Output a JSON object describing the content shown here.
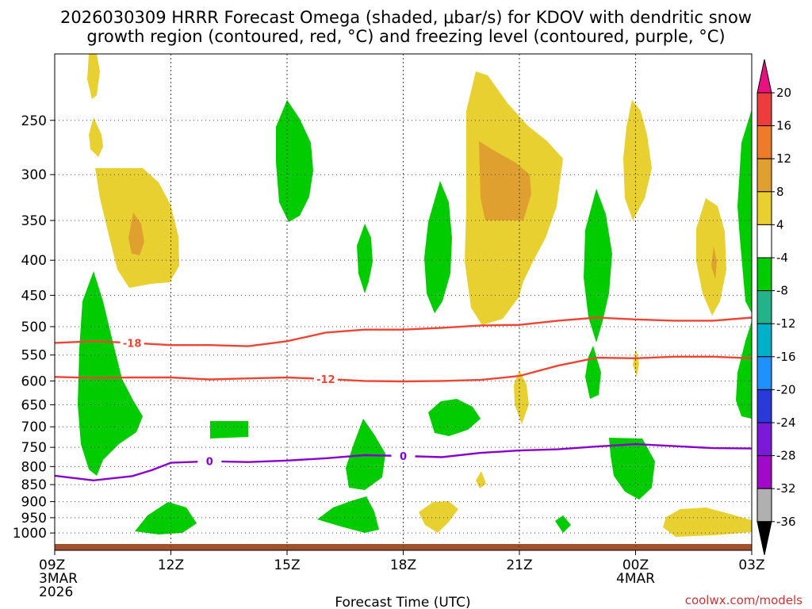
{
  "chart_data": {
    "type": "time-height contour",
    "title_line1": "2026030309 HRRR Forecast Omega (shaded, μbar/s) for KDOV with dendritic snow",
    "title_line2": "growth region (contoured, red, °C) and freezing level (contoured, purple, °C)",
    "xlabel": "Forecast Time (UTC)",
    "credit": "coolwx.com/models",
    "x_range_hours": [
      0,
      18
    ],
    "x_ticks": [
      {
        "h": 0,
        "label": "09Z",
        "sub1": "3MAR",
        "sub2": "2026"
      },
      {
        "h": 3,
        "label": "12Z",
        "sub1": "",
        "sub2": ""
      },
      {
        "h": 6,
        "label": "15Z",
        "sub1": "",
        "sub2": ""
      },
      {
        "h": 9,
        "label": "18Z",
        "sub1": "",
        "sub2": ""
      },
      {
        "h": 12,
        "label": "21Z",
        "sub1": "",
        "sub2": ""
      },
      {
        "h": 15,
        "label": "00Z",
        "sub1": "4MAR",
        "sub2": ""
      },
      {
        "h": 18,
        "label": "03Z",
        "sub1": "",
        "sub2": ""
      }
    ],
    "y_ticks_hpa": [
      250,
      300,
      350,
      400,
      450,
      500,
      550,
      600,
      650,
      700,
      750,
      800,
      850,
      900,
      950,
      1000
    ],
    "y_labels": [
      "250",
      "300",
      "350",
      "400",
      "450",
      "500",
      "550",
      "600",
      "650",
      "700",
      "750",
      "800",
      "850",
      "900",
      "950",
      "1000"
    ],
    "colorbar_labels": [
      "20",
      "16",
      "12",
      "8",
      "4",
      "-4",
      "-8",
      "-12",
      "-16",
      "-20",
      "-24",
      "-28",
      "-32",
      "-36"
    ],
    "colorbar_colors": [
      "#e8117f",
      "#ee3b3b",
      "#ee7a2a",
      "#e0a030",
      "#e8d030",
      "#ffffff",
      "#00cc00",
      "#22b38a",
      "#00b0c8",
      "#1e90ff",
      "#2a3ad8",
      "#7a1ad8",
      "#a00ac8",
      "#b0b0b0",
      "#000000"
    ],
    "temperature_contours": [
      {
        "label": "-18",
        "color": "#ee4433",
        "points": [
          [
            0,
            528
          ],
          [
            1,
            525
          ],
          [
            2,
            528
          ],
          [
            3,
            532
          ],
          [
            4,
            532
          ],
          [
            5,
            534
          ],
          [
            6,
            525
          ],
          [
            7,
            510
          ],
          [
            8,
            505
          ],
          [
            9,
            505
          ],
          [
            10,
            502
          ],
          [
            11,
            498
          ],
          [
            12,
            497
          ],
          [
            13,
            490
          ],
          [
            14,
            485
          ],
          [
            15,
            488
          ],
          [
            16,
            490
          ],
          [
            17,
            490
          ],
          [
            18,
            485
          ]
        ]
      },
      {
        "label": "-12",
        "color": "#ee4433",
        "points": [
          [
            0,
            592
          ],
          [
            1,
            594
          ],
          [
            2,
            593
          ],
          [
            3,
            593
          ],
          [
            4,
            597
          ],
          [
            5,
            595
          ],
          [
            6,
            593
          ],
          [
            7,
            596
          ],
          [
            8,
            600
          ],
          [
            9,
            601
          ],
          [
            10,
            600
          ],
          [
            11,
            598
          ],
          [
            12,
            590
          ],
          [
            13,
            570
          ],
          [
            14,
            555
          ],
          [
            15,
            556
          ],
          [
            16,
            553
          ],
          [
            17,
            553
          ],
          [
            18,
            556
          ]
        ]
      },
      {
        "label": "0",
        "color": "#8800cc",
        "points": [
          [
            0,
            825
          ],
          [
            1,
            838
          ],
          [
            2,
            826
          ],
          [
            2.5,
            810
          ],
          [
            3,
            790
          ],
          [
            4,
            786
          ],
          [
            5,
            788
          ],
          [
            6,
            784
          ],
          [
            7,
            778
          ],
          [
            8,
            770
          ],
          [
            9,
            772
          ],
          [
            10,
            775
          ],
          [
            11,
            764
          ],
          [
            12,
            758
          ],
          [
            13,
            755
          ],
          [
            14,
            748
          ],
          [
            15,
            742
          ],
          [
            16,
            747
          ],
          [
            17,
            752
          ],
          [
            18,
            753
          ]
        ]
      }
    ]
  }
}
